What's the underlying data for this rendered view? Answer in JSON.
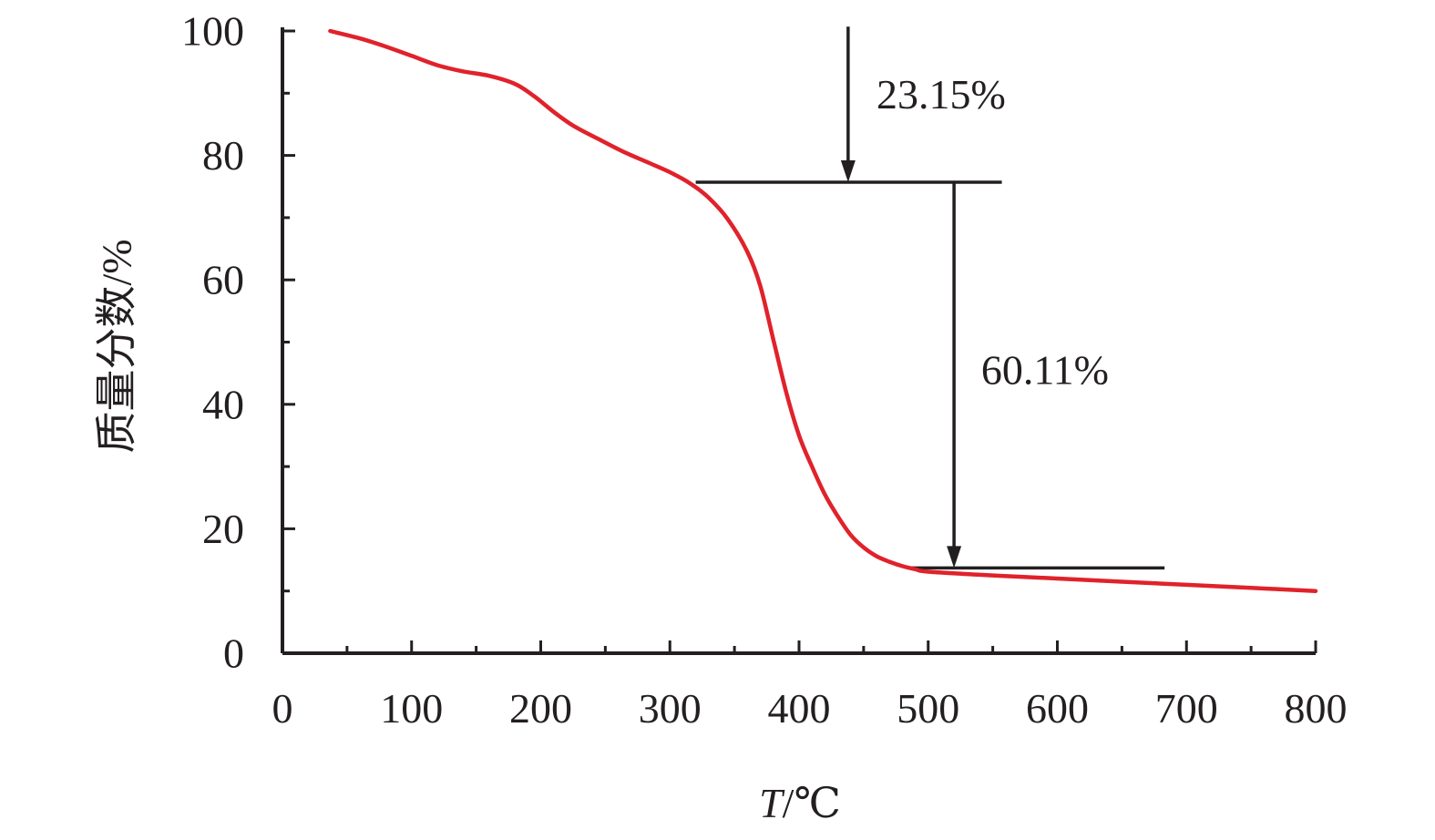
{
  "chart_data": {
    "type": "line",
    "xlabel_italic": "T",
    "xlabel_unit": "/℃",
    "ylabel": "质量分数/%",
    "xlim": [
      0,
      800
    ],
    "ylim": [
      0,
      100
    ],
    "x_ticks": [
      0,
      100,
      200,
      300,
      400,
      500,
      600,
      700,
      800
    ],
    "y_ticks": [
      0,
      20,
      40,
      60,
      80,
      100
    ],
    "x_minor_step": 50,
    "y_minor_step": 10,
    "grid": false,
    "series": [
      {
        "color": "#e0222b",
        "x": [
          37,
          60,
          80,
          100,
          120,
          140,
          160,
          180,
          195,
          210,
          225,
          245,
          265,
          285,
          300,
          315,
          330,
          345,
          360,
          370,
          380,
          390,
          400,
          410,
          420,
          430,
          440,
          450,
          460,
          470,
          480,
          490,
          500,
          550,
          600,
          650,
          700,
          750,
          800
        ],
        "y": [
          100,
          98.8,
          97.5,
          96.0,
          94.5,
          93.5,
          92.8,
          91.5,
          89.5,
          87.0,
          84.8,
          82.6,
          80.5,
          78.7,
          77.3,
          75.6,
          73.2,
          69.7,
          64.5,
          59.0,
          50.5,
          42.0,
          35.0,
          30.0,
          25.5,
          22.0,
          19.0,
          17.0,
          15.6,
          14.7,
          14.0,
          13.5,
          13.1,
          12.5,
          12.0,
          11.5,
          11.0,
          10.5,
          10.0
        ]
      }
    ],
    "annotations": [
      {
        "text": "23.15%",
        "x": 460,
        "y": 89.8
      },
      {
        "text": "60.11%",
        "x": 541,
        "y": 45.5
      }
    ],
    "guides": {
      "upper_level": {
        "y": 75.7,
        "x_start": 320,
        "x_end": 557
      },
      "lower_level": {
        "y": 13.7,
        "x_start": 487,
        "x_end": 683
      },
      "arrow_down_top": {
        "x": 438,
        "y_from": 100.7,
        "y_to": 75.7
      },
      "arrow_down_span": {
        "x": 520,
        "y_from": 75.7,
        "y_to": 13.7
      }
    }
  }
}
